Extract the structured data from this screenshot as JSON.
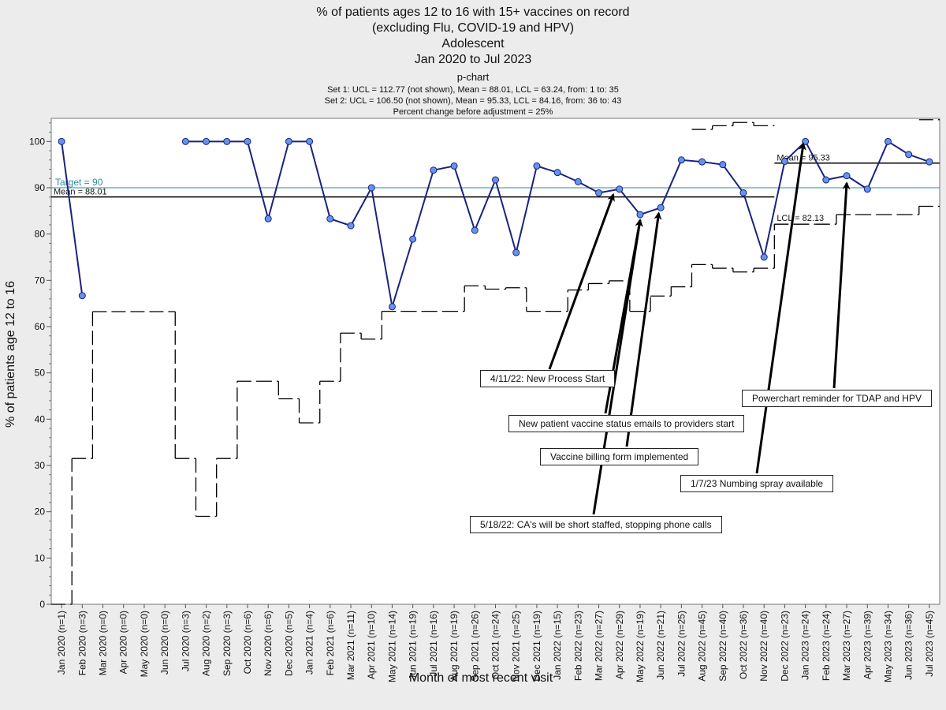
{
  "header": {
    "title_lines": [
      "% of patients ages 12 to 16 with 15+ vaccines on record",
      "(excluding Flu, COVID-19 and HPV)",
      "Adolescent",
      "Jan 2020 to Jul 2023"
    ],
    "chart_kind": "p-chart",
    "stats_lines": [
      "Set 1: UCL = 112.77 (not shown), Mean = 88.01, LCL = 63.24, from: 1 to: 35",
      "Set 2: UCL = 106.50 (not shown), Mean = 95.33, LCL = 84.16, from: 36 to: 43",
      "Percent change before adjustment = 25%"
    ]
  },
  "chart_data": {
    "type": "line",
    "ylabel": "% of patients age 12 to 16",
    "xlabel": "Month of most recent visit",
    "ylim": [
      0,
      105
    ],
    "y_ticks": [
      0,
      10,
      20,
      30,
      40,
      50,
      60,
      70,
      80,
      90,
      100
    ],
    "categories": [
      "Jan 2020 (n=1)",
      "Feb 2020 (n=3)",
      "Mar 2020 (n=0)",
      "Apr 2020 (n=0)",
      "May 2020 (n=0)",
      "Jun 2020 (n=0)",
      "Jul 2020 (n=3)",
      "Aug 2020 (n=2)",
      "Sep 2020 (n=3)",
      "Oct 2020 (n=6)",
      "Nov 2020 (n=6)",
      "Dec 2020 (n=5)",
      "Jan 2021 (n=4)",
      "Feb 2021 (n=6)",
      "Mar 2021 (n=11)",
      "Apr 2021 (n=10)",
      "May 2021 (n=14)",
      "Jun 2021 (n=19)",
      "Jul 2021 (n=16)",
      "Aug 2021 (n=19)",
      "Sep 2021 (n=26)",
      "Oct 2021 (n=24)",
      "Nov 2021 (n=25)",
      "Dec 2021 (n=19)",
      "Jan 2022 (n=15)",
      "Feb 2022 (n=23)",
      "Mar 2022 (n=27)",
      "Apr 2022 (n=29)",
      "May 2022 (n=19)",
      "Jun 2022 (n=21)",
      "Jul 2022 (n=25)",
      "Aug 2022 (n=45)",
      "Sep 2022 (n=40)",
      "Oct 2022 (n=36)",
      "Nov 2022 (n=40)",
      "Dec 2022 (n=23)",
      "Jan 2023 (n=24)",
      "Feb 2023 (n=24)",
      "Mar 2023 (n=27)",
      "Apr 2023 (n=39)",
      "May 2023 (n=34)",
      "Jun 2023 (n=36)",
      "Jul 2023 (n=45)"
    ],
    "values": [
      100,
      66.7,
      null,
      null,
      null,
      null,
      100,
      100,
      100,
      100,
      83.3,
      100,
      100,
      83.3,
      81.8,
      90,
      64.3,
      78.9,
      93.8,
      94.7,
      80.8,
      91.7,
      76,
      94.7,
      93.3,
      91.3,
      88.9,
      89.7,
      84.2,
      85.7,
      96,
      95.6,
      95,
      88.9,
      75,
      95.7,
      100,
      91.7,
      92.6,
      89.7,
      100,
      97.2,
      95.6
    ],
    "lcl": [
      0,
      31.5,
      null,
      null,
      null,
      null,
      31.5,
      19,
      31.5,
      48.2,
      48.2,
      44.4,
      39.2,
      48.2,
      58.6,
      57.3,
      63.3,
      63.3,
      63.3,
      63.3,
      68.8,
      68.1,
      68.4,
      63.3,
      63.3,
      67.9,
      69.3,
      69.9,
      63.3,
      66.6,
      68.6,
      73.4,
      72.6,
      71.8,
      72.6,
      82.13,
      82.13,
      82.13,
      84.2,
      84.2,
      84.2,
      84.2,
      86
    ],
    "ucl_partial": [
      null,
      null,
      null,
      null,
      null,
      null,
      null,
      null,
      null,
      null,
      null,
      null,
      null,
      null,
      null,
      null,
      null,
      null,
      null,
      null,
      null,
      null,
      null,
      null,
      null,
      null,
      null,
      null,
      null,
      null,
      null,
      102.6,
      103.4,
      104.1,
      103.4,
      null,
      null,
      null,
      null,
      null,
      null,
      null,
      104.7
    ],
    "placeholder_lcl": [
      {
        "from": 2,
        "to": 5,
        "value": 63.24
      }
    ],
    "mean_lines": [
      {
        "label": "Mean = 88.01",
        "value": 88.01,
        "from": 0,
        "to": 34
      },
      {
        "label": "Mean = 95.33",
        "value": 95.33,
        "from": 35,
        "to": 42
      }
    ],
    "target": {
      "label": "Target = 90",
      "value": 90
    },
    "lcl_label": {
      "label": "LCL = 82.13",
      "value": 82.13
    },
    "colors": {
      "series": "#1a237e",
      "marker": "#6495ed",
      "target": "#2e8b9b",
      "mean": "#000000",
      "limits": "#000000"
    },
    "annotations": [
      {
        "text": "4/11/22: New Process Start",
        "target_index": 26.7,
        "target_value": 88.5
      },
      {
        "text": "New patient vaccine status emails to providers start",
        "target_index": 28.0,
        "target_value": 83.0
      },
      {
        "text": "Vaccine billing form implemented",
        "target_index": 28.9,
        "target_value": 84.5
      },
      {
        "text": "5/18/22: CA's will be short staffed, stopping phone calls",
        "target_index": 28.0,
        "target_value": 83.0
      },
      {
        "text": "1/7/23 Numbing spray available",
        "target_index": 35.9,
        "target_value": 99.5
      },
      {
        "text": "Powerchart reminder for TDAP and HPV",
        "target_index": 38.0,
        "target_value": 91.0
      }
    ]
  }
}
